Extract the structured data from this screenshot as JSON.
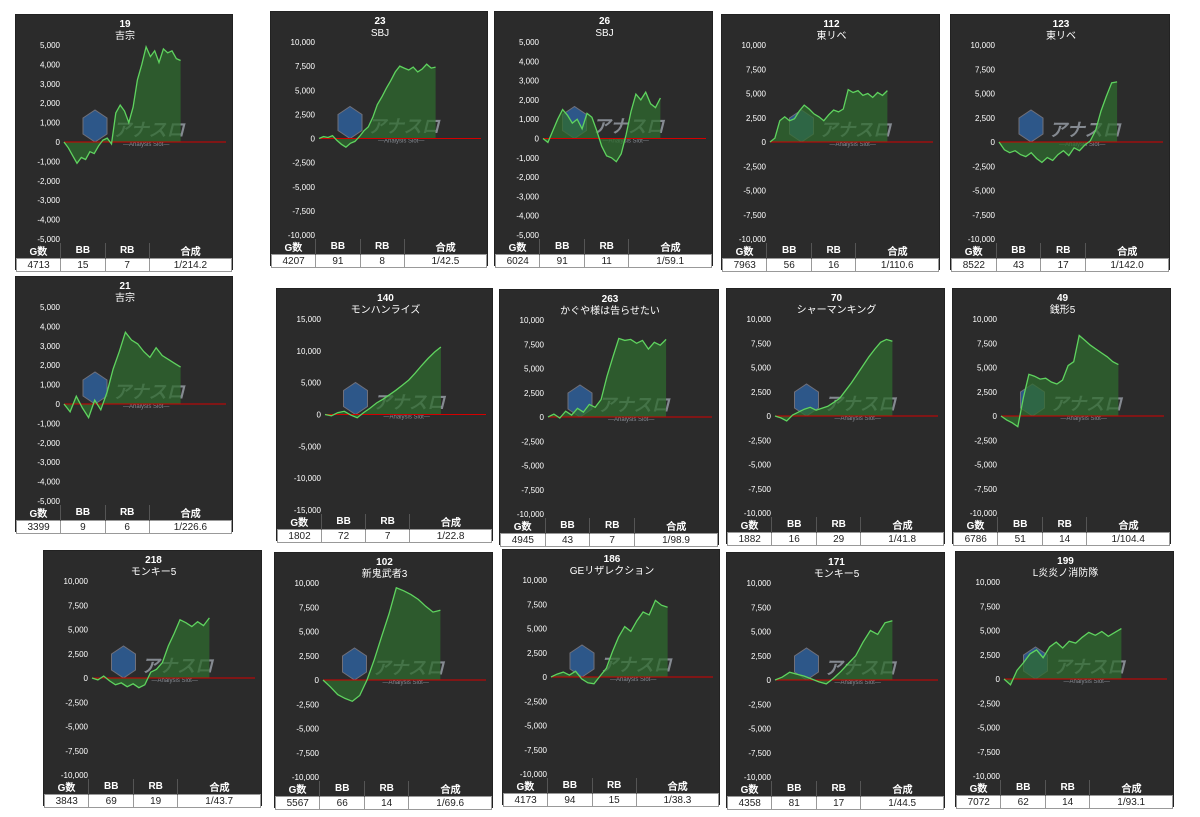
{
  "colors": {
    "panel": "#2b2b2b",
    "line": "#5fd35f",
    "fill": "#2f6b2f",
    "zero": "#d40000",
    "grid": "#3a3a3a",
    "text": "#ffffff"
  },
  "stat_headers": [
    "G数",
    "BB",
    "RB",
    "合成"
  ],
  "watermark": {
    "title": "アナスロ",
    "subtitle": "—Analysis Slot—"
  },
  "chart_data": [
    {
      "type": "line",
      "machine": "19",
      "title": "吉宗",
      "ylim": [
        -5000,
        5000
      ],
      "yticks": [
        5000,
        4000,
        3000,
        2000,
        1000,
        0,
        -1000,
        -2000,
        -3000,
        -4000,
        -5000
      ],
      "ytick_labels": [
        "5,000",
        "4,000",
        "3,000",
        "2,000",
        "1,000",
        "0",
        "-1,000",
        "-2,000",
        "-3,000",
        "-4,000",
        "-5,000"
      ],
      "values": [
        0,
        -300,
        -700,
        -1100,
        -800,
        -900,
        -500,
        -600,
        -200,
        100,
        200,
        -100,
        1500,
        1900,
        1600,
        1000,
        1800,
        3200,
        4000,
        4900,
        4400,
        4700,
        4100,
        4800,
        4600,
        4700,
        4300,
        4200
      ],
      "stats": [
        "4713",
        "15",
        "7",
        "1/214.2"
      ]
    },
    {
      "type": "line",
      "machine": "23",
      "title": "SBJ",
      "ylim": [
        -10000,
        10000
      ],
      "yticks": [
        10000,
        7500,
        5000,
        2500,
        0,
        -2500,
        -5000,
        -7500,
        -10000
      ],
      "ytick_labels": [
        "10,000",
        "7,500",
        "5,000",
        "2,500",
        "0",
        "-2,500",
        "-5,000",
        "-7,500",
        "-10,000"
      ],
      "values": [
        0,
        200,
        100,
        300,
        -200,
        -600,
        -900,
        -500,
        -300,
        200,
        800,
        1200,
        2200,
        3500,
        4300,
        5200,
        6000,
        6900,
        7500,
        7300,
        7100,
        7400,
        6900,
        7200,
        7700,
        7300,
        7400
      ],
      "stats": [
        "4207",
        "91",
        "8",
        "1/42.5"
      ]
    },
    {
      "type": "line",
      "machine": "26",
      "title": "SBJ",
      "ylim": [
        -5000,
        5000
      ],
      "yticks": [
        5000,
        4000,
        3000,
        2000,
        1000,
        0,
        -1000,
        -2000,
        -3000,
        -4000,
        -5000
      ],
      "ytick_labels": [
        "5,000",
        "4,000",
        "3,000",
        "2,000",
        "1,000",
        "0",
        "-1,000",
        "-2,000",
        "-3,000",
        "-4,000",
        "-5,000"
      ],
      "values": [
        0,
        -200,
        400,
        1000,
        1500,
        1200,
        800,
        1000,
        500,
        1300,
        1100,
        400,
        -400,
        -900,
        -1000,
        -1200,
        -800,
        200,
        1400,
        2300,
        2000,
        2400,
        1800,
        1600,
        2100
      ],
      "stats": [
        "6024",
        "91",
        "11",
        "1/59.1"
      ]
    },
    {
      "type": "line",
      "machine": "112",
      "title": "東リベ",
      "ylim": [
        -10000,
        10000
      ],
      "yticks": [
        10000,
        7500,
        5000,
        2500,
        0,
        -2500,
        -5000,
        -7500,
        -10000
      ],
      "ytick_labels": [
        "10,000",
        "7,500",
        "5,000",
        "2,500",
        "0",
        "-2,500",
        "-5,000",
        "-7,500",
        "-10,000"
      ],
      "values": [
        0,
        400,
        2200,
        2600,
        2200,
        2400,
        3200,
        3800,
        3400,
        2900,
        2600,
        2200,
        2800,
        3300,
        3100,
        3400,
        5400,
        5100,
        5300,
        4800,
        5000,
        4600,
        5100,
        4800,
        5300
      ],
      "stats": [
        "7963",
        "56",
        "16",
        "1/110.6"
      ]
    },
    {
      "type": "line",
      "machine": "123",
      "title": "東リベ",
      "ylim": [
        -10000,
        10000
      ],
      "yticks": [
        10000,
        7500,
        5000,
        2500,
        0,
        -2500,
        -5000,
        -7500,
        -10000
      ],
      "ytick_labels": [
        "10,000",
        "7,500",
        "5,000",
        "2,500",
        "0",
        "-2,500",
        "-5,000",
        "-7,500",
        "-10,000"
      ],
      "values": [
        0,
        -800,
        -1100,
        -900,
        -1300,
        -1500,
        -1100,
        -1700,
        -2100,
        -1600,
        -1900,
        -1300,
        -900,
        -1400,
        -600,
        -900,
        -300,
        100,
        1200,
        3200,
        4700,
        6100,
        6200
      ],
      "stats": [
        "8522",
        "43",
        "17",
        "1/142.0"
      ]
    },
    {
      "type": "line",
      "machine": "21",
      "title": "吉宗",
      "ylim": [
        -5000,
        5000
      ],
      "yticks": [
        5000,
        4000,
        3000,
        2000,
        1000,
        0,
        -1000,
        -2000,
        -3000,
        -4000,
        -5000
      ],
      "ytick_labels": [
        "5,000",
        "4,000",
        "3,000",
        "2,000",
        "1,000",
        "0",
        "-1,000",
        "-2,000",
        "-3,000",
        "-4,000",
        "-5,000"
      ],
      "values": [
        0,
        -400,
        400,
        -200,
        -700,
        200,
        -300,
        600,
        1800,
        2700,
        3700,
        3300,
        3100,
        2700,
        2400,
        2900,
        2500,
        2300,
        2100,
        1900
      ],
      "stats": [
        "3399",
        "9",
        "6",
        "1/226.6"
      ]
    },
    {
      "type": "line",
      "machine": "140",
      "title": "モンハンライズ",
      "ylim": [
        -15000,
        15000
      ],
      "yticks": [
        15000,
        10000,
        5000,
        0,
        -5000,
        -10000,
        -15000
      ],
      "ytick_labels": [
        "15,000",
        "10,000",
        "5,000",
        "0",
        "-5,000",
        "-10,000",
        "-15,000"
      ],
      "values": [
        0,
        -200,
        300,
        500,
        -100,
        -500,
        300,
        1000,
        1800,
        2400,
        3100,
        3800,
        4600,
        5400,
        6500,
        7700,
        8800,
        9800,
        10600
      ],
      "stats": [
        "1802",
        "72",
        "7",
        "1/22.8"
      ]
    },
    {
      "type": "line",
      "machine": "263",
      "title": "かぐや様は告らせたい",
      "ylim": [
        -10000,
        10000
      ],
      "yticks": [
        10000,
        7500,
        5000,
        2500,
        0,
        -2500,
        -5000,
        -7500,
        -10000
      ],
      "ytick_labels": [
        "10,000",
        "7,500",
        "5,000",
        "2,500",
        "0",
        "-2,500",
        "-5,000",
        "-7,500",
        "-10,000"
      ],
      "values": [
        0,
        300,
        -100,
        600,
        200,
        900,
        500,
        1300,
        1000,
        1800,
        4200,
        6200,
        8100,
        7900,
        8000,
        7600,
        7900,
        7000,
        7700,
        7400,
        8000
      ],
      "stats": [
        "4945",
        "43",
        "7",
        "1/98.9"
      ]
    },
    {
      "type": "line",
      "machine": "70",
      "title": "シャーマンキング",
      "ylim": [
        -10000,
        10000
      ],
      "yticks": [
        10000,
        7500,
        5000,
        2500,
        0,
        -2500,
        -5000,
        -7500,
        -10000
      ],
      "ytick_labels": [
        "10,000",
        "7,500",
        "5,000",
        "2,500",
        "0",
        "-2,500",
        "-5,000",
        "-7,500",
        "-10,000"
      ],
      "values": [
        0,
        -200,
        -500,
        100,
        400,
        700,
        900,
        600,
        800,
        1000,
        1400,
        1800,
        2600,
        3400,
        4300,
        5200,
        6100,
        6900,
        7600,
        7900,
        7700
      ],
      "stats": [
        "1882",
        "16",
        "29",
        "1/41.8"
      ]
    },
    {
      "type": "line",
      "machine": "49",
      "title": "銭形5",
      "ylim": [
        -10000,
        10000
      ],
      "yticks": [
        10000,
        7500,
        5000,
        2500,
        0,
        -2500,
        -5000,
        -7500,
        -10000
      ],
      "ytick_labels": [
        "10,000",
        "7,500",
        "5,000",
        "2,500",
        "0",
        "-2,500",
        "-5,000",
        "-7,500",
        "-10,000"
      ],
      "values": [
        0,
        -400,
        -700,
        -1100,
        1900,
        4300,
        4100,
        3800,
        3900,
        3500,
        3300,
        3700,
        5200,
        5600,
        8300,
        7800,
        7300,
        6900,
        6500,
        6100,
        5600,
        5300
      ],
      "stats": [
        "6786",
        "51",
        "14",
        "1/104.4"
      ]
    },
    {
      "type": "line",
      "machine": "218",
      "title": "モンキー5",
      "ylim": [
        -10000,
        10000
      ],
      "yticks": [
        10000,
        7500,
        5000,
        2500,
        0,
        -2500,
        -5000,
        -7500,
        -10000
      ],
      "ytick_labels": [
        "10,000",
        "7,500",
        "5,000",
        "2,500",
        "0",
        "-2,500",
        "-5,000",
        "-7,500",
        "-10,000"
      ],
      "values": [
        0,
        -200,
        200,
        -300,
        -700,
        -500,
        -900,
        -600,
        -1000,
        -700,
        600,
        900,
        1600,
        3300,
        4600,
        6000,
        5700,
        5300,
        5800,
        5400,
        6200
      ],
      "stats": [
        "3843",
        "69",
        "19",
        "1/43.7"
      ]
    },
    {
      "type": "line",
      "machine": "102",
      "title": "新鬼武者3",
      "ylim": [
        -10000,
        10000
      ],
      "yticks": [
        10000,
        7500,
        5000,
        2500,
        0,
        -2500,
        -5000,
        -7500,
        -10000
      ],
      "ytick_labels": [
        "10,000",
        "7,500",
        "5,000",
        "2,500",
        "0",
        "-2,500",
        "-5,000",
        "-7,500",
        "-10,000"
      ],
      "values": [
        0,
        -700,
        -1500,
        -1900,
        -2200,
        -1600,
        0,
        2100,
        4500,
        6800,
        9500,
        9200,
        8800,
        8300,
        7600,
        7000,
        7200
      ],
      "stats": [
        "5567",
        "66",
        "14",
        "1/69.6"
      ]
    },
    {
      "type": "line",
      "machine": "186",
      "title": "GEリザレクション",
      "ylim": [
        -10000,
        10000
      ],
      "yticks": [
        10000,
        7500,
        5000,
        2500,
        0,
        -2500,
        -5000,
        -7500,
        -10000
      ],
      "ytick_labels": [
        "10,000",
        "7,500",
        "5,000",
        "2,500",
        "0",
        "-2,500",
        "-5,000",
        "-7,500",
        "-10,000"
      ],
      "values": [
        0,
        300,
        500,
        200,
        600,
        -200,
        -600,
        -700,
        100,
        900,
        2600,
        4100,
        5200,
        4700,
        5800,
        6700,
        6400,
        7900,
        7400,
        7200
      ],
      "stats": [
        "4173",
        "94",
        "15",
        "1/38.3"
      ]
    },
    {
      "type": "line",
      "machine": "171",
      "title": "モンキー5",
      "ylim": [
        -10000,
        10000
      ],
      "yticks": [
        10000,
        7500,
        5000,
        2500,
        0,
        -2500,
        -5000,
        -7500,
        -10000
      ],
      "ytick_labels": [
        "10,000",
        "7,500",
        "5,000",
        "2,500",
        "0",
        "-2,500",
        "-5,000",
        "-7,500",
        "-10,000"
      ],
      "values": [
        0,
        300,
        800,
        600,
        400,
        100,
        -200,
        -400,
        200,
        900,
        1700,
        2500,
        3900,
        5100,
        4700,
        5900,
        6100
      ],
      "stats": [
        "4358",
        "81",
        "17",
        "1/44.5"
      ]
    },
    {
      "type": "line",
      "machine": "199",
      "title": "L炎炎ノ消防隊",
      "ylim": [
        -10000,
        10000
      ],
      "yticks": [
        10000,
        7500,
        5000,
        2500,
        0,
        -2500,
        -5000,
        -7500,
        -10000
      ],
      "ytick_labels": [
        "10,000",
        "7,500",
        "5,000",
        "2,500",
        "0",
        "-2,500",
        "-5,000",
        "-7,500",
        "-10,000"
      ],
      "values": [
        0,
        -600,
        900,
        1700,
        2600,
        3000,
        2200,
        3300,
        3800,
        3200,
        3900,
        3700,
        4300,
        4800,
        4500,
        4900,
        4400,
        4800,
        5200
      ],
      "stats": [
        "7072",
        "62",
        "14",
        "1/93.1"
      ]
    }
  ]
}
